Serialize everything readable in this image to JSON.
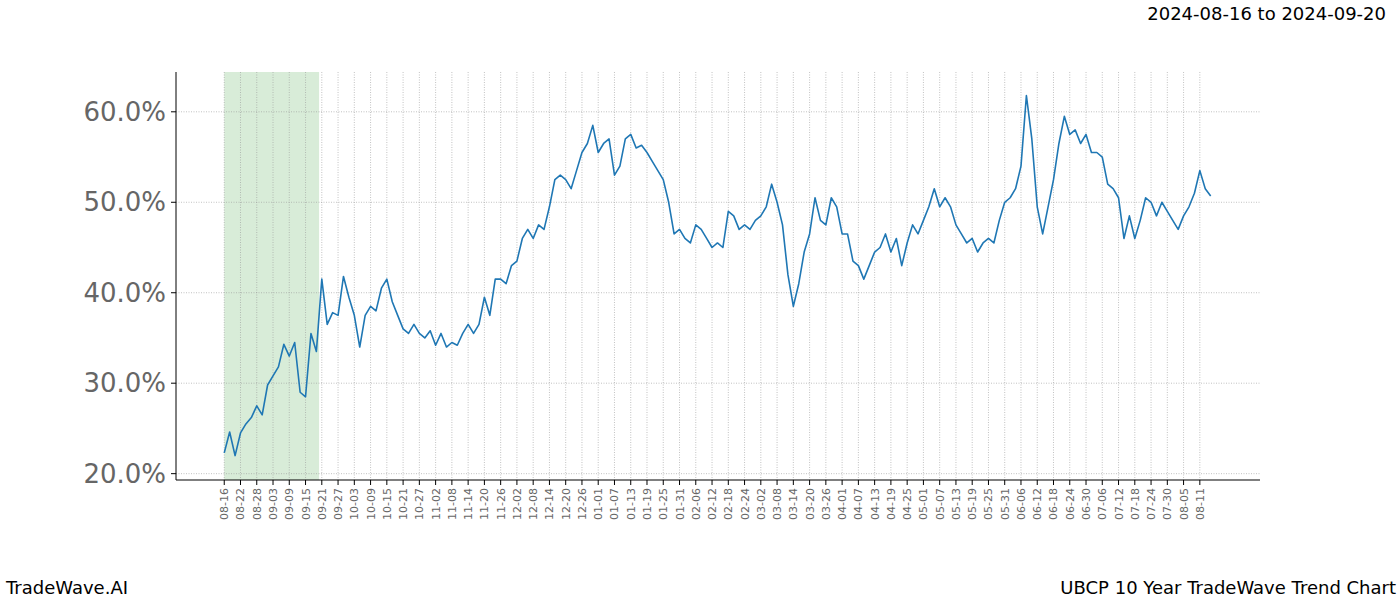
{
  "chart_data": {
    "type": "line",
    "title": "UBCP 10 Year TradeWave Trend Chart",
    "subtitle": "2024-08-16 to 2024-09-20",
    "source": "TradeWave.AI",
    "color": "#1f77b4",
    "grid": true,
    "shaded_range": [
      0,
      17.5
    ],
    "shaded_color": "#d8ecd8",
    "xlim": [
      -8.9,
      191.1
    ],
    "ylim": [
      19.3,
      64.4
    ],
    "yticks": [
      {
        "value": 20,
        "label": "20.0%"
      },
      {
        "value": 30,
        "label": "30.0%"
      },
      {
        "value": 40,
        "label": "40.0%"
      },
      {
        "value": 50,
        "label": "50.0%"
      },
      {
        "value": 60,
        "label": "60.0%"
      }
    ],
    "categories": [
      "08-16",
      null,
      null,
      "08-22",
      null,
      null,
      "08-28",
      null,
      null,
      "09-03",
      null,
      null,
      "09-09",
      null,
      null,
      "09-15",
      null,
      null,
      "09-21",
      null,
      null,
      "09-27",
      null,
      null,
      "10-03",
      null,
      null,
      "10-09",
      null,
      null,
      "10-15",
      null,
      null,
      "10-21",
      null,
      null,
      "10-27",
      null,
      null,
      "11-02",
      null,
      null,
      "11-08",
      null,
      null,
      "11-14",
      null,
      null,
      "11-20",
      null,
      null,
      "11-26",
      null,
      null,
      "12-02",
      null,
      null,
      "12-08",
      null,
      null,
      "12-14",
      null,
      null,
      "12-20",
      null,
      null,
      "12-26",
      null,
      null,
      "01-01",
      null,
      null,
      "01-07",
      null,
      null,
      "01-13",
      null,
      null,
      "01-19",
      null,
      null,
      "01-25",
      null,
      null,
      "01-31",
      null,
      null,
      "02-06",
      null,
      null,
      "02-12",
      null,
      null,
      "02-18",
      null,
      null,
      "02-24",
      null,
      null,
      "03-02",
      null,
      null,
      "03-08",
      null,
      null,
      "03-14",
      null,
      null,
      "03-20",
      null,
      null,
      "03-26",
      null,
      null,
      "04-01",
      null,
      null,
      "04-07",
      null,
      null,
      "04-13",
      null,
      null,
      "04-19",
      null,
      null,
      "04-25",
      null,
      null,
      "05-01",
      null,
      null,
      "05-07",
      null,
      null,
      "05-13",
      null,
      null,
      "05-19",
      null,
      null,
      "05-25",
      null,
      null,
      "05-31",
      null,
      null,
      "06-06",
      null,
      null,
      "06-12",
      null,
      null,
      "06-18",
      null,
      null,
      "06-24",
      null,
      null,
      "06-30",
      null,
      null,
      "07-06",
      null,
      null,
      "07-12",
      null,
      null,
      "07-18",
      null,
      null,
      "07-24",
      null,
      null,
      "07-30",
      null,
      null,
      "08-05",
      null,
      null,
      "08-11",
      null,
      null
    ],
    "values": [
      22.3,
      24.6,
      22.0,
      24.5,
      25.5,
      26.2,
      27.5,
      26.5,
      29.8,
      30.8,
      31.8,
      34.3,
      33.0,
      34.5,
      29.0,
      28.5,
      35.5,
      33.5,
      41.5,
      36.5,
      37.8,
      37.5,
      41.8,
      39.5,
      37.5,
      34.0,
      37.5,
      38.5,
      38.0,
      40.5,
      41.5,
      39.0,
      37.5,
      36.0,
      35.5,
      36.5,
      35.5,
      35.0,
      35.8,
      34.2,
      35.5,
      34.0,
      34.5,
      34.2,
      35.5,
      36.5,
      35.5,
      36.5,
      39.5,
      37.5,
      41.5,
      41.5,
      41.0,
      43.0,
      43.5,
      46.0,
      47.0,
      46.0,
      47.5,
      47.0,
      49.5,
      52.5,
      53.0,
      52.5,
      51.5,
      53.5,
      55.5,
      56.5,
      58.5,
      55.5,
      56.5,
      57.0,
      53.0,
      54.0,
      57.0,
      57.5,
      56.0,
      56.3,
      55.5,
      54.5,
      53.5,
      52.5,
      50.0,
      46.5,
      47.0,
      46.0,
      45.5,
      47.5,
      47.0,
      46.0,
      45.0,
      45.5,
      45.0,
      49.0,
      48.5,
      47.0,
      47.5,
      47.0,
      48.0,
      48.5,
      49.5,
      52.0,
      50.0,
      47.5,
      42.0,
      38.5,
      41.0,
      44.5,
      46.5,
      50.5,
      48.0,
      47.5,
      50.5,
      49.5,
      46.5,
      46.5,
      43.5,
      43.0,
      41.5,
      43.0,
      44.5,
      45.0,
      46.5,
      44.5,
      46.0,
      43.0,
      45.5,
      47.5,
      46.5,
      48.0,
      49.5,
      51.5,
      49.5,
      50.5,
      49.5,
      47.5,
      46.5,
      45.5,
      46.0,
      44.5,
      45.5,
      46.0,
      45.5,
      48.0,
      50.0,
      50.5,
      51.5,
      54.0,
      61.8,
      57.0,
      49.5,
      46.5,
      49.5,
      52.5,
      56.5,
      59.5,
      57.5,
      58.0,
      56.5,
      57.5,
      55.5,
      55.5,
      55.0,
      52.0,
      51.5,
      50.5,
      46.0,
      48.5,
      46.0,
      48.0,
      50.5,
      50.0,
      48.5,
      50.0,
      49.0,
      48.0,
      47.0,
      48.5,
      49.5,
      51.0,
      53.5,
      51.5,
      50.7
    ]
  }
}
